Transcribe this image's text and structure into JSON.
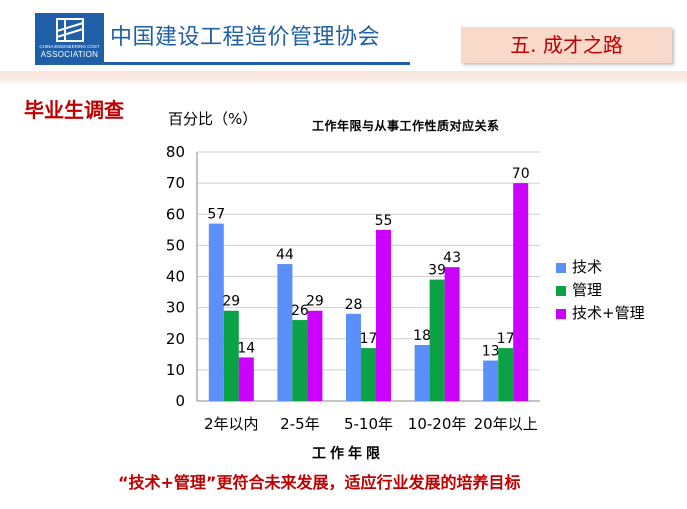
{
  "header": {
    "org_name": "中国建设工程造价管理协会",
    "logo_text_small": "CHINA ENGINEERING COST",
    "logo_text_big": "ASSOCIATION",
    "section_tag": "五. 成才之路",
    "brand_color": "#1f5fa8"
  },
  "page": {
    "heading": "毕业生调查",
    "footer_note": "“技术+管理”更符合未来发展，适应行业发展的培养目标"
  },
  "chart_data": {
    "type": "bar",
    "title": "工作年限与从事工作性质对应关系",
    "ylabel": "百分比（%）",
    "xlabel": "工作年限",
    "ylim": [
      0,
      80
    ],
    "yticks": [
      0,
      10,
      20,
      30,
      40,
      50,
      60,
      70,
      80
    ],
    "grid": true,
    "legend_position": "right",
    "categories": [
      "2年以内",
      "2-5年",
      "5-10年",
      "10-20年",
      "20年以上"
    ],
    "series": [
      {
        "name": "技术",
        "color": "#5b8ff9",
        "values": [
          57,
          44,
          28,
          18,
          13
        ]
      },
      {
        "name": "管理",
        "color": "#0aa245",
        "values": [
          29,
          26,
          17,
          39,
          17
        ]
      },
      {
        "name": "技术+管理",
        "color": "#cc00ff",
        "values": [
          14,
          29,
          55,
          43,
          70
        ]
      }
    ]
  }
}
